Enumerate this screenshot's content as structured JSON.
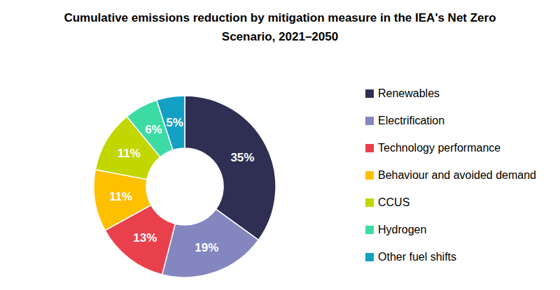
{
  "chart_data": {
    "type": "pie",
    "title": "Cumulative emissions reduction by mitigation measure in the IEA's Net Zero Scenario, 2021–2050",
    "categories": [
      "Renewables",
      "Electrification",
      "Technology performance",
      "Behaviour and avoided demand",
      "CCUS",
      "Hydrogen",
      "Other fuel shifts"
    ],
    "values": [
      35,
      19,
      13,
      11,
      11,
      6,
      5
    ],
    "value_labels": [
      "35%",
      "19%",
      "13%",
      "11%",
      "11%",
      "6%",
      "5%"
    ],
    "colors": [
      "#2e2f52",
      "#8486c0",
      "#e8404c",
      "#ffc000",
      "#c2d600",
      "#3ddba4",
      "#13a0c4"
    ],
    "data_labels": true,
    "legend": "right"
  }
}
